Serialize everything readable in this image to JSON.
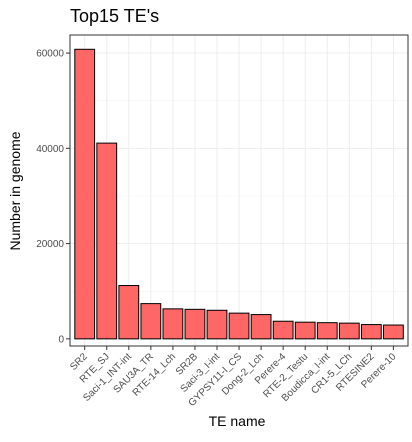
{
  "chart_data": {
    "type": "bar",
    "title": "Top15 TE's",
    "xlabel": "TE name",
    "ylabel": "Number in genome",
    "categories": [
      "SR2",
      "RTE_SJ",
      "Saci-1_INT-int",
      "SAU3A_TR",
      "RTE-14_Lch",
      "SR2B",
      "Saci-3_I-int",
      "GYPSY11-I_CS",
      "Dong-2_Lch",
      "Perere-4",
      "RTE-2_Testu",
      "Boudicca_I-int",
      "CR1-5_LCh",
      "RTESINE2",
      "Perere-10"
    ],
    "values": [
      60800,
      41100,
      11200,
      7400,
      6300,
      6200,
      6000,
      5400,
      5100,
      3700,
      3500,
      3400,
      3300,
      3000,
      2900
    ],
    "ylim": [
      -1500,
      63800
    ],
    "yticks": [
      0,
      20000,
      40000,
      60000
    ],
    "ytick_labels": [
      "0",
      "20000",
      "40000",
      "60000"
    ],
    "bar_color": "#ff6666",
    "bar_edge_color": "#000000",
    "grid": true,
    "legend": "none"
  }
}
